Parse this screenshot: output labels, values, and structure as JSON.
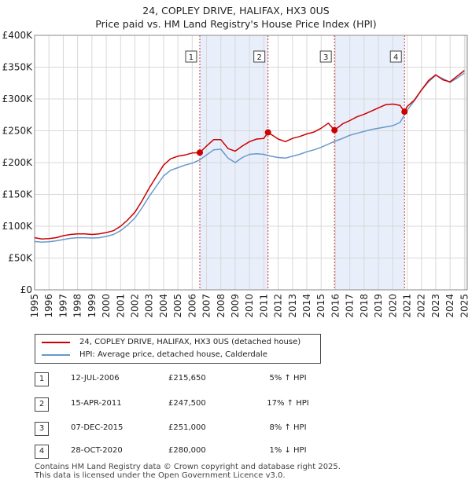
{
  "header": {
    "title": "24, COPLEY DRIVE, HALIFAX, HX3 0US",
    "subtitle": "Price paid vs. HM Land Registry's House Price Index (HPI)"
  },
  "chart_data": {
    "type": "line",
    "ylim": [
      0,
      400000
    ],
    "xlim": [
      1995,
      2025.2
    ],
    "ytick_labels": [
      "£0",
      "£50K",
      "£100K",
      "£150K",
      "£200K",
      "£250K",
      "£300K",
      "£350K",
      "£400K"
    ],
    "ytick_values": [
      0,
      50000,
      100000,
      150000,
      200000,
      250000,
      300000,
      350000,
      400000
    ],
    "xtick_labels": [
      "1995",
      "1996",
      "1997",
      "1998",
      "1999",
      "2000",
      "2001",
      "2002",
      "2003",
      "2004",
      "2005",
      "2006",
      "2007",
      "2008",
      "2009",
      "2010",
      "2011",
      "2012",
      "2013",
      "2014",
      "2015",
      "2016",
      "2017",
      "2018",
      "2019",
      "2020",
      "2021",
      "2022",
      "2023",
      "2024",
      "2025"
    ],
    "series": [
      {
        "name": "24, COPLEY DRIVE, HALIFAX, HX3 0US (detached house)",
        "color": "#cc0000",
        "x": [
          1995,
          1995.5,
          1996,
          1996.5,
          1997,
          1997.5,
          1998,
          1998.5,
          1999,
          1999.5,
          2000,
          2000.5,
          2001,
          2001.5,
          2002,
          2002.5,
          2003,
          2003.5,
          2004,
          2004.5,
          2005,
          2005.5,
          2006,
          2006.53,
          2007,
          2007.5,
          2008,
          2008.5,
          2009,
          2009.5,
          2010,
          2010.5,
          2011,
          2011.29,
          2012,
          2012.5,
          2013,
          2013.5,
          2014,
          2014.5,
          2015,
          2015.5,
          2015.93,
          2016.5,
          2017,
          2017.5,
          2018,
          2018.5,
          2019,
          2019.5,
          2020,
          2020.5,
          2020.82,
          2021,
          2021.5,
          2022,
          2022.5,
          2023,
          2023.5,
          2024,
          2024.5,
          2025
        ],
        "values": [
          82000,
          80000,
          80500,
          82000,
          85000,
          87000,
          88000,
          88000,
          87000,
          88000,
          90000,
          93000,
          100000,
          110000,
          122000,
          140000,
          160000,
          178000,
          196000,
          206000,
          210000,
          212000,
          215000,
          215650,
          226000,
          236000,
          236000,
          222000,
          218000,
          226000,
          233000,
          237000,
          238000,
          247500,
          237000,
          233000,
          238000,
          241000,
          245000,
          248000,
          254000,
          262000,
          251000,
          261000,
          266000,
          272000,
          276000,
          281000,
          286000,
          291000,
          292000,
          290000,
          280000,
          288000,
          298000,
          314000,
          329000,
          338000,
          330000,
          327000,
          336000,
          345000
        ]
      },
      {
        "name": "HPI: Average price, detached house, Calderdale",
        "color": "#6699cc",
        "x": [
          1995,
          1995.5,
          1996,
          1996.5,
          1997,
          1997.5,
          1998,
          1998.5,
          1999,
          1999.5,
          2000,
          2000.5,
          2001,
          2001.5,
          2002,
          2002.5,
          2003,
          2003.5,
          2004,
          2004.5,
          2005,
          2005.5,
          2006,
          2006.5,
          2007,
          2007.5,
          2008,
          2008.5,
          2009,
          2009.5,
          2010,
          2010.5,
          2011,
          2011.5,
          2012,
          2012.5,
          2013,
          2013.5,
          2014,
          2014.5,
          2015,
          2015.5,
          2016,
          2016.5,
          2017,
          2017.5,
          2018,
          2018.5,
          2019,
          2019.5,
          2020,
          2020.5,
          2021,
          2021.5,
          2022,
          2022.5,
          2023,
          2023.5,
          2024,
          2024.5,
          2025
        ],
        "values": [
          76000,
          75000,
          75500,
          77000,
          79000,
          81000,
          82000,
          82000,
          81500,
          82000,
          84000,
          87000,
          93000,
          102000,
          113000,
          129000,
          147000,
          163000,
          179000,
          188000,
          192000,
          196000,
          199000,
          204000,
          212000,
          220000,
          221000,
          207000,
          200000,
          208000,
          213000,
          214000,
          213000,
          210000,
          208000,
          207000,
          210000,
          213000,
          217000,
          220000,
          224000,
          229000,
          234000,
          238000,
          243000,
          246000,
          249000,
          252000,
          254000,
          256000,
          258000,
          263000,
          282000,
          297000,
          314000,
          327000,
          337000,
          332000,
          326000,
          333000,
          341000
        ]
      }
    ],
    "sales": [
      {
        "n": "1",
        "date": "12-JUL-2006",
        "x": 2006.53,
        "price": 215650,
        "price_label": "£215,650",
        "hpi": "5% ↑ HPI"
      },
      {
        "n": "2",
        "date": "15-APR-2011",
        "x": 2011.29,
        "price": 247500,
        "price_label": "£247,500",
        "hpi": "17% ↑ HPI"
      },
      {
        "n": "3",
        "date": "07-DEC-2015",
        "x": 2015.93,
        "price": 251000,
        "price_label": "£251,000",
        "hpi": "8% ↑ HPI"
      },
      {
        "n": "4",
        "date": "28-OCT-2020",
        "x": 2020.82,
        "price": 280000,
        "price_label": "£280,000",
        "hpi": "1% ↓ HPI"
      }
    ],
    "shaded_periods": [
      [
        2006.53,
        2011.29
      ],
      [
        2015.93,
        2020.82
      ]
    ]
  },
  "legend": {
    "property_label": "24, COPLEY DRIVE, HALIFAX, HX3 0US (detached house)",
    "hpi_label": "HPI: Average price, detached house, Calderdale",
    "property_color": "#cc0000",
    "hpi_color": "#6699cc"
  },
  "footer": {
    "line1": "Contains HM Land Registry data © Crown copyright and database right 2025.",
    "line2": "This data is licensed under the Open Government Licence v3.0."
  }
}
